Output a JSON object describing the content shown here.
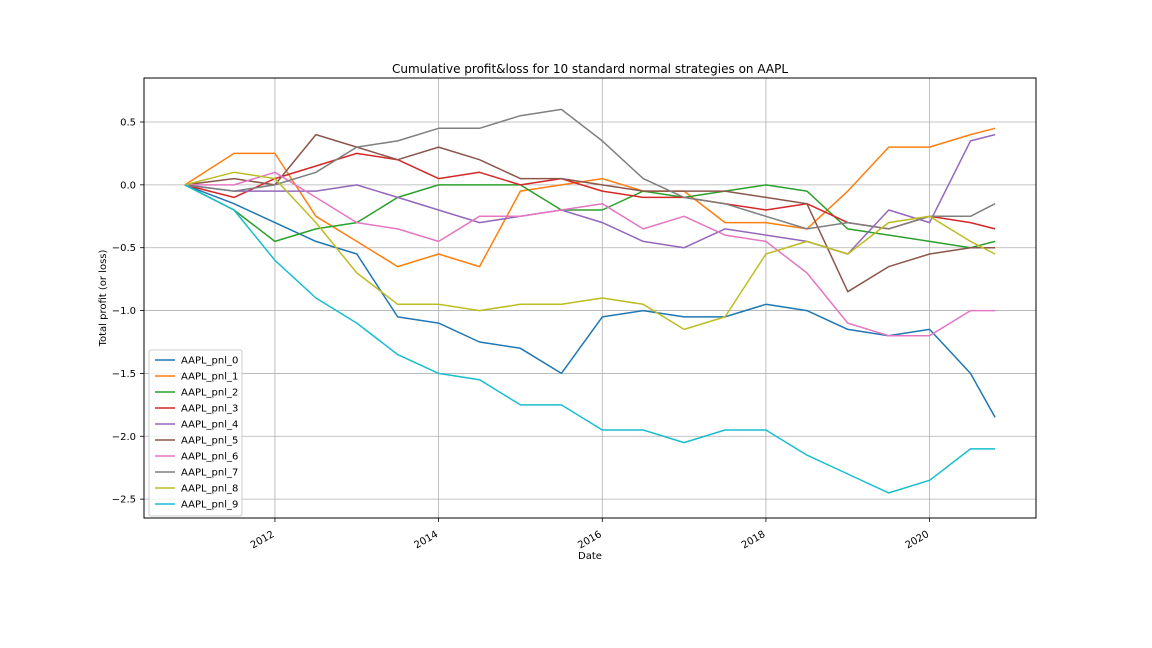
{
  "chart_data": {
    "type": "line",
    "title": "Cumulative profit&loss for 10 standard normal strategies on AAPL",
    "xlabel": "Date",
    "ylabel": "Total profit (or loss)",
    "xlim": [
      2010.4,
      2021.3
    ],
    "ylim": [
      -2.65,
      0.85
    ],
    "x_ticks": [
      2012,
      2014,
      2016,
      2018,
      2020
    ],
    "x_tick_labels": [
      "2012",
      "2014",
      "2016",
      "2018",
      "2020"
    ],
    "y_ticks": [
      0.5,
      0.0,
      -0.5,
      -1.0,
      -1.5,
      -2.0,
      -2.5
    ],
    "y_tick_labels": [
      "0.5",
      "0.0",
      "−0.5",
      "−1.0",
      "−1.5",
      "−2.0",
      "−2.5"
    ],
    "grid": true,
    "legend_position": "lower-left",
    "x": [
      2010.9,
      2011.5,
      2012.0,
      2012.5,
      2013.0,
      2013.5,
      2014.0,
      2014.5,
      2015.0,
      2015.5,
      2016.0,
      2016.5,
      2017.0,
      2017.5,
      2018.0,
      2018.5,
      2019.0,
      2019.5,
      2020.0,
      2020.5,
      2020.8
    ],
    "series": [
      {
        "name": "AAPL_pnl_0",
        "color": "#1f77b4",
        "values": [
          0.0,
          -0.15,
          -0.3,
          -0.45,
          -0.55,
          -1.05,
          -1.1,
          -1.25,
          -1.3,
          -1.5,
          -1.05,
          -1.0,
          -1.05,
          -1.05,
          -0.95,
          -1.0,
          -1.15,
          -1.2,
          -1.15,
          -1.5,
          -1.85
        ]
      },
      {
        "name": "AAPL_pnl_1",
        "color": "#ff7f0e",
        "values": [
          0.0,
          0.25,
          0.25,
          -0.25,
          -0.45,
          -0.65,
          -0.55,
          -0.65,
          -0.05,
          0.0,
          0.05,
          -0.05,
          -0.05,
          -0.3,
          -0.3,
          -0.35,
          -0.05,
          0.3,
          0.3,
          0.4,
          0.45
        ]
      },
      {
        "name": "AAPL_pnl_2",
        "color": "#2ca02c",
        "values": [
          0.0,
          -0.2,
          -0.45,
          -0.35,
          -0.3,
          -0.1,
          0.0,
          0.0,
          0.0,
          -0.2,
          -0.2,
          -0.05,
          -0.1,
          -0.05,
          0.0,
          -0.05,
          -0.35,
          -0.4,
          -0.45,
          -0.5,
          -0.45
        ]
      },
      {
        "name": "AAPL_pnl_3",
        "color": "#d62728",
        "values": [
          0.0,
          -0.1,
          0.05,
          0.15,
          0.25,
          0.2,
          0.05,
          0.1,
          0.0,
          0.05,
          -0.05,
          -0.1,
          -0.1,
          -0.15,
          -0.2,
          -0.15,
          -0.3,
          -0.35,
          -0.25,
          -0.3,
          -0.35
        ]
      },
      {
        "name": "AAPL_pnl_4",
        "color": "#9467bd",
        "values": [
          0.0,
          -0.05,
          -0.05,
          -0.05,
          0.0,
          -0.1,
          -0.2,
          -0.3,
          -0.25,
          -0.2,
          -0.3,
          -0.45,
          -0.5,
          -0.35,
          -0.4,
          -0.45,
          -0.55,
          -0.2,
          -0.3,
          0.35,
          0.4
        ]
      },
      {
        "name": "AAPL_pnl_5",
        "color": "#8c564b",
        "values": [
          0.0,
          0.05,
          0.0,
          0.4,
          0.3,
          0.2,
          0.3,
          0.2,
          0.05,
          0.05,
          0.0,
          -0.05,
          -0.05,
          -0.05,
          -0.1,
          -0.15,
          -0.85,
          -0.65,
          -0.55,
          -0.5,
          -0.5
        ]
      },
      {
        "name": "AAPL_pnl_6",
        "color": "#e377c2",
        "values": [
          0.0,
          0.0,
          0.1,
          -0.1,
          -0.3,
          -0.35,
          -0.45,
          -0.25,
          -0.25,
          -0.2,
          -0.15,
          -0.35,
          -0.25,
          -0.4,
          -0.45,
          -0.7,
          -1.1,
          -1.2,
          -1.2,
          -1.0,
          -1.0
        ]
      },
      {
        "name": "AAPL_pnl_7",
        "color": "#7f7f7f",
        "values": [
          0.0,
          -0.05,
          0.0,
          0.1,
          0.3,
          0.35,
          0.45,
          0.45,
          0.55,
          0.6,
          0.35,
          0.05,
          -0.1,
          -0.15,
          -0.25,
          -0.35,
          -0.3,
          -0.35,
          -0.25,
          -0.25,
          -0.15
        ]
      },
      {
        "name": "AAPL_pnl_8",
        "color": "#bcbd22",
        "values": [
          0.0,
          0.1,
          0.05,
          -0.3,
          -0.7,
          -0.95,
          -0.95,
          -1.0,
          -0.95,
          -0.95,
          -0.9,
          -0.95,
          -1.15,
          -1.05,
          -0.55,
          -0.45,
          -0.55,
          -0.3,
          -0.25,
          -0.45,
          -0.55
        ]
      },
      {
        "name": "AAPL_pnl_9",
        "color": "#17becf",
        "values": [
          0.0,
          -0.2,
          -0.6,
          -0.9,
          -1.1,
          -1.35,
          -1.5,
          -1.55,
          -1.75,
          -1.75,
          -1.95,
          -1.95,
          -2.05,
          -1.95,
          -1.95,
          -2.15,
          -2.3,
          -2.45,
          -2.35,
          -2.1,
          -2.1
        ]
      }
    ]
  }
}
